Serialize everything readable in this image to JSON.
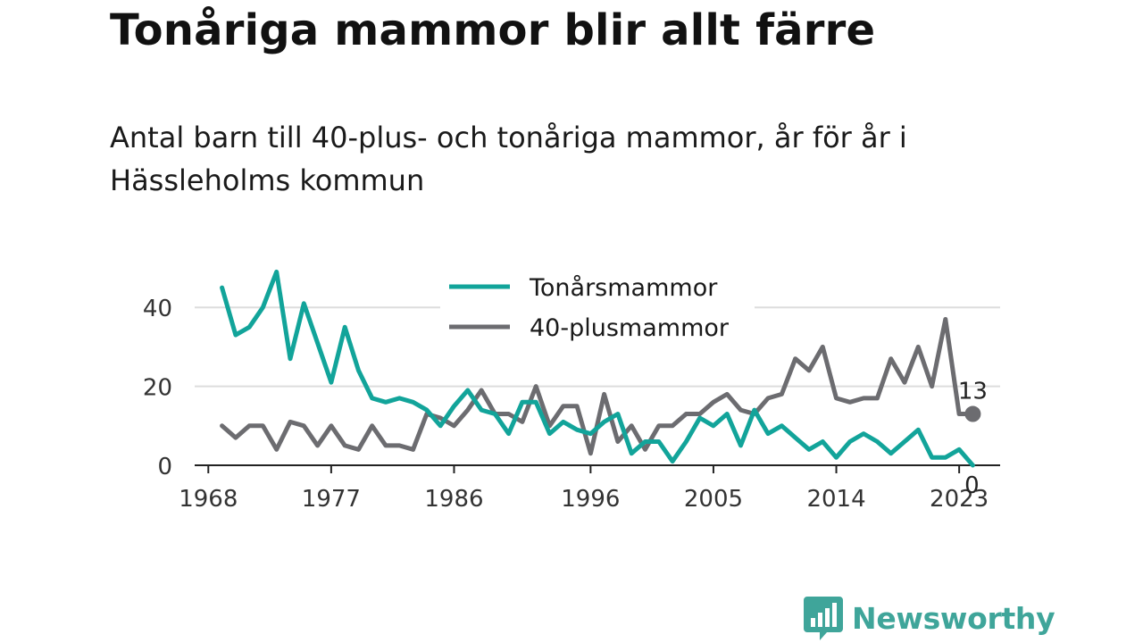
{
  "title": "Tonåriga mammor blir allt färre",
  "subtitle": "Antal barn till 40-plus- och tonåriga mammor, år för år i Hässleholms kommun",
  "brand": {
    "name": "Newsworthy",
    "color": "#3fa59a",
    "icon": "bar-chart-speech-bubble-icon"
  },
  "chart_data": {
    "type": "line",
    "x_ticks": [
      1968,
      1977,
      1986,
      1996,
      2005,
      2014,
      2023
    ],
    "y_ticks": [
      0,
      20,
      40
    ],
    "ylim": [
      0,
      50
    ],
    "xlim": [
      1967,
      2026
    ],
    "grid": true,
    "legend_position": "top-center",
    "x": [
      1969,
      1970,
      1971,
      1972,
      1973,
      1974,
      1975,
      1976,
      1977,
      1978,
      1979,
      1980,
      1981,
      1982,
      1983,
      1984,
      1985,
      1986,
      1987,
      1988,
      1989,
      1990,
      1991,
      1992,
      1993,
      1994,
      1995,
      1996,
      1997,
      1998,
      1999,
      2000,
      2001,
      2002,
      2003,
      2004,
      2005,
      2006,
      2007,
      2008,
      2009,
      2010,
      2011,
      2012,
      2013,
      2014,
      2015,
      2016,
      2017,
      2018,
      2019,
      2020,
      2021,
      2022,
      2023,
      2024
    ],
    "series": [
      {
        "name": "Tonårsmammor",
        "color": "#12a49a",
        "values": [
          45,
          33,
          35,
          40,
          49,
          27,
          41,
          31,
          21,
          35,
          24,
          17,
          16,
          17,
          16,
          14,
          10,
          15,
          19,
          14,
          13,
          8,
          16,
          16,
          8,
          11,
          9,
          8,
          11,
          13,
          3,
          6,
          6,
          1,
          6,
          12,
          10,
          13,
          5,
          14,
          8,
          10,
          7,
          4,
          6,
          2,
          6,
          8,
          6,
          3,
          6,
          9,
          2,
          2,
          4,
          0
        ],
        "end_label": "0"
      },
      {
        "name": "40-plusmammor",
        "color": "#6c6c70",
        "values": [
          10,
          7,
          10,
          10,
          4,
          11,
          10,
          5,
          10,
          5,
          4,
          10,
          5,
          5,
          4,
          13,
          12,
          10,
          14,
          19,
          13,
          13,
          11,
          20,
          10,
          15,
          15,
          3,
          18,
          6,
          10,
          4,
          10,
          10,
          13,
          13,
          16,
          18,
          14,
          13,
          17,
          18,
          27,
          24,
          30,
          17,
          16,
          17,
          17,
          27,
          21,
          30,
          20,
          37,
          13,
          13
        ],
        "end_label": "13"
      }
    ]
  }
}
